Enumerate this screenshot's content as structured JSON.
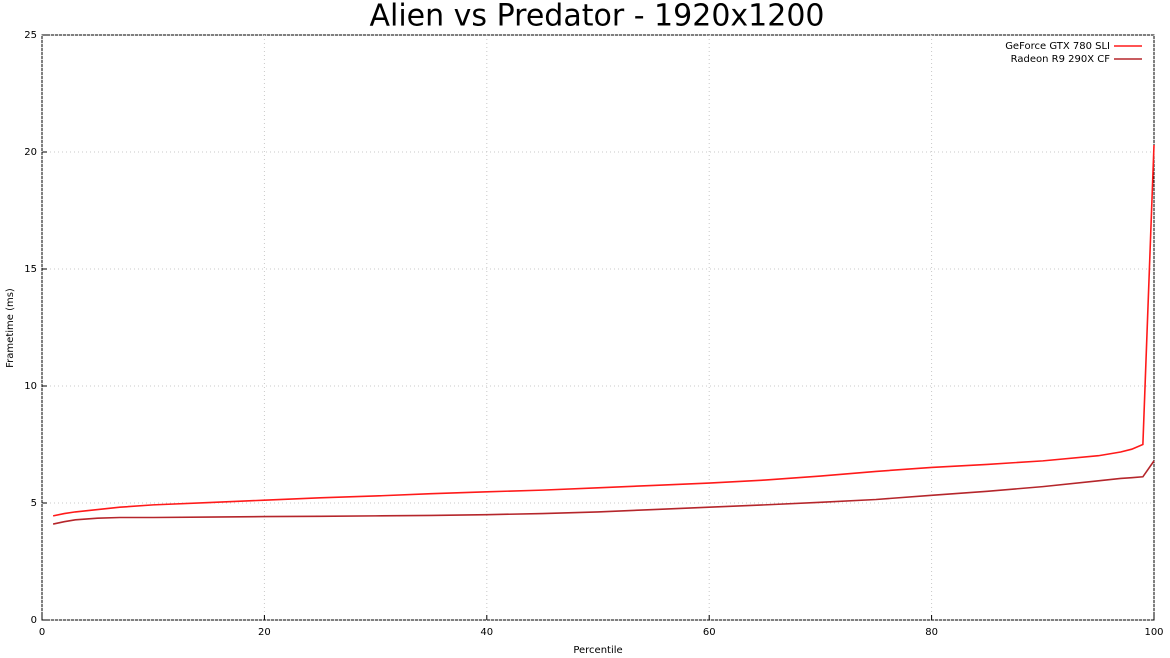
{
  "chart_data": {
    "type": "line",
    "title": "Alien vs Predator - 1920x1200",
    "xlabel": "Percentile",
    "ylabel": "Frametime (ms)",
    "x": [
      1,
      2,
      3,
      5,
      7,
      10,
      15,
      20,
      25,
      30,
      35,
      40,
      45,
      50,
      55,
      60,
      65,
      70,
      75,
      80,
      85,
      90,
      95,
      97,
      98,
      99,
      100
    ],
    "series": [
      {
        "name": "GeForce GTX 780 SLI",
        "color": "#ff1a1a",
        "values": [
          4.45,
          4.55,
          4.62,
          4.72,
          4.82,
          4.92,
          5.02,
          5.12,
          5.22,
          5.3,
          5.4,
          5.48,
          5.55,
          5.65,
          5.75,
          5.85,
          5.98,
          6.15,
          6.35,
          6.52,
          6.65,
          6.8,
          7.02,
          7.18,
          7.3,
          7.5,
          20.3
        ]
      },
      {
        "name": "Radeon R9 290X CF",
        "color": "#b5262b",
        "values": [
          4.1,
          4.2,
          4.28,
          4.35,
          4.38,
          4.38,
          4.4,
          4.42,
          4.43,
          4.45,
          4.47,
          4.5,
          4.55,
          4.62,
          4.72,
          4.82,
          4.92,
          5.03,
          5.15,
          5.33,
          5.5,
          5.7,
          5.95,
          6.05,
          6.08,
          6.12,
          6.8
        ]
      }
    ],
    "xlim": [
      0,
      100
    ],
    "xticks": [
      0,
      20,
      40,
      60,
      80,
      100
    ],
    "ylim": [
      0,
      25
    ],
    "yticks": [
      0,
      5,
      10,
      15,
      20,
      25
    ],
    "grid": true,
    "legend": "top-right"
  }
}
